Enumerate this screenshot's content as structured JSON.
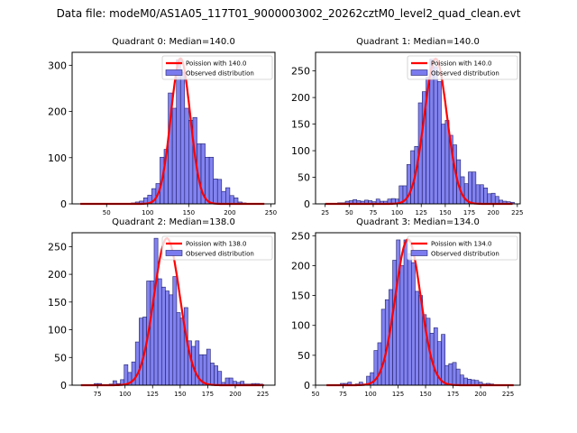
{
  "figure": {
    "suptitle": "Data file: modeM0/AS1A05_117T01_9000003002_20262cztM0_level2_quad_clean.evt"
  },
  "colors": {
    "bar_fill": "#7b7bef",
    "bar_edge": "#1f1f6b",
    "poisson_line": "#ff0000"
  },
  "chart_data": [
    {
      "type": "bar",
      "title": "Quadrant 0: Median=140.0",
      "legend": [
        "Poission with 140.0",
        "Observed distribution"
      ],
      "legend_position": "top-right",
      "xlim": [
        8,
        255
      ],
      "ylim": [
        0,
        328
      ],
      "xticks": [
        50,
        100,
        150,
        200,
        250
      ],
      "yticks": [
        0,
        100,
        200,
        300
      ],
      "bin_width": 5,
      "bins": [
        70,
        75,
        80,
        85,
        90,
        95,
        100,
        105,
        110,
        115,
        120,
        125,
        130,
        135,
        140,
        145,
        150,
        155,
        160,
        165,
        170,
        175,
        180,
        185,
        190,
        195,
        200,
        205,
        210,
        215,
        220,
        225,
        230,
        235
      ],
      "values": [
        1,
        1,
        2,
        4,
        6,
        13,
        19,
        33,
        44,
        101,
        118,
        240,
        207,
        312,
        285,
        207,
        181,
        187,
        130,
        130,
        101,
        101,
        54,
        53,
        27,
        35,
        18,
        13,
        4,
        2,
        1,
        1,
        1,
        1
      ],
      "poisson_mean": 140.0,
      "poisson_peak": 315,
      "poisson_range": [
        18,
        242
      ]
    },
    {
      "type": "bar",
      "title": "Quadrant 1: Median=140.0",
      "legend": [
        "Poission with 140.0",
        "Observed distribution"
      ],
      "legend_position": "top-right",
      "xlim": [
        15,
        228
      ],
      "ylim": [
        0,
        285
      ],
      "xticks": [
        25,
        50,
        75,
        100,
        125,
        150,
        175,
        200,
        225
      ],
      "yticks": [
        0,
        50,
        100,
        150,
        200,
        250
      ],
      "bin_width": 3.9,
      "bins": [
        30,
        34,
        38,
        42,
        46,
        50,
        54,
        58,
        62,
        66,
        70,
        74,
        78,
        82,
        86,
        90,
        94,
        98,
        102,
        106,
        110,
        114,
        118,
        122,
        126,
        130,
        134,
        138,
        142,
        146,
        150,
        154,
        158,
        162,
        166,
        170,
        174,
        178,
        182,
        186,
        190,
        194,
        198,
        202,
        206,
        210,
        214,
        218
      ],
      "values": [
        1,
        1,
        2,
        2,
        5,
        6,
        8,
        6,
        5,
        7,
        6,
        4,
        9,
        5,
        5,
        9,
        10,
        9,
        34,
        34,
        74,
        100,
        108,
        190,
        211,
        238,
        272,
        258,
        230,
        150,
        157,
        129,
        111,
        83,
        51,
        38,
        60,
        60,
        36,
        36,
        30,
        19,
        20,
        14,
        7,
        5,
        4,
        3
      ],
      "poisson_mean": 140.0,
      "poisson_peak": 273,
      "poisson_range": [
        25,
        220
      ]
    },
    {
      "type": "bar",
      "title": "Quadrant 2: Median=138.0",
      "legend": [
        "Poission with 138.0",
        "Observed distribution"
      ],
      "legend_position": "top-right",
      "xlim": [
        52,
        236
      ],
      "ylim": [
        0,
        275
      ],
      "xticks": [
        75,
        100,
        125,
        150,
        175,
        200,
        225
      ],
      "yticks": [
        0,
        50,
        100,
        150,
        200,
        250
      ],
      "bin_width": 3.4,
      "bins": [
        72,
        75.4,
        78.8,
        82.2,
        85.6,
        89,
        92.4,
        95.8,
        99.2,
        102.6,
        106,
        109.4,
        112.8,
        116.2,
        119.6,
        123,
        126.4,
        129.8,
        133.2,
        136.6,
        140,
        143.4,
        146.8,
        150.2,
        153.6,
        157,
        160.4,
        163.8,
        167.2,
        170.6,
        174,
        177.4,
        180.8,
        184.2,
        187.6,
        191,
        194.4,
        197.8,
        201.2,
        204.6,
        208,
        211.4,
        214.8,
        218.2,
        221.6
      ],
      "values": [
        3,
        3,
        1,
        1,
        2,
        8,
        3,
        10,
        37,
        23,
        42,
        78,
        121,
        123,
        188,
        188,
        265,
        192,
        177,
        170,
        163,
        196,
        131,
        121,
        140,
        80,
        70,
        80,
        55,
        55,
        65,
        40,
        35,
        25,
        5,
        13,
        13,
        7,
        5,
        7,
        2,
        2,
        3,
        3,
        2
      ],
      "poisson_mean": 138.0,
      "poisson_peak": 265,
      "poisson_range": [
        60,
        226
      ]
    },
    {
      "type": "bar",
      "title": "Quadrant 3: Median=134.0",
      "legend": [
        "Poission with 134.0",
        "Observed distribution"
      ],
      "legend_position": "top-right",
      "xlim": [
        50,
        236
      ],
      "ylim": [
        0,
        255
      ],
      "xticks": [
        50,
        75,
        100,
        125,
        150,
        175,
        200,
        225
      ],
      "yticks": [
        0,
        50,
        100,
        150,
        200,
        250
      ],
      "bin_width": 3.4,
      "bins": [
        72.5,
        75.9,
        79.3,
        82.7,
        86.1,
        89.5,
        92.9,
        96.3,
        99.7,
        103.1,
        106.5,
        109.9,
        113.3,
        116.7,
        120.1,
        123.5,
        126.9,
        130.3,
        133.7,
        137.1,
        140.5,
        143.9,
        147.3,
        150.7,
        154.1,
        157.5,
        160.9,
        164.3,
        167.7,
        171.1,
        174.5,
        177.9,
        181.3,
        184.7,
        188.1,
        191.5,
        194.9,
        198.3,
        201.7,
        205.1,
        208.5
      ],
      "values": [
        3,
        3,
        5,
        1,
        2,
        5,
        2,
        15,
        21,
        58,
        71,
        127,
        143,
        160,
        209,
        243,
        200,
        243,
        220,
        205,
        157,
        150,
        118,
        112,
        87,
        96,
        73,
        85,
        33,
        36,
        38,
        27,
        17,
        12,
        10,
        9,
        8,
        5,
        2,
        3,
        2
      ],
      "poisson_mean": 134.0,
      "poisson_peak": 244,
      "poisson_range": [
        60,
        230
      ]
    }
  ]
}
